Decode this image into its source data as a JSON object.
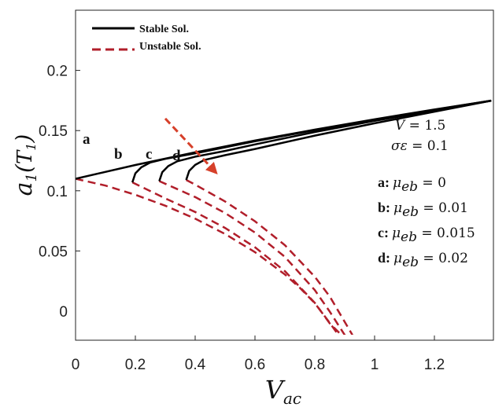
{
  "chart_data": {
    "type": "line",
    "xlabel_main": "V",
    "xlabel_sub": "ac",
    "ylabel_main": "a",
    "ylabel_sub": "1",
    "ylabel_arg": "T",
    "ylabel_arg_sub": "1",
    "xlim": [
      0,
      1.4
    ],
    "ylim": [
      -0.03,
      0.2
    ],
    "x_ticks": [
      {
        "value": 0,
        "label": "0"
      },
      {
        "value": 0.2,
        "label": "0.2"
      },
      {
        "value": 0.4,
        "label": "0.4"
      },
      {
        "value": 0.6,
        "label": "0.6"
      },
      {
        "value": 0.8,
        "label": "0.8"
      },
      {
        "value": 1.0,
        "label": "1"
      },
      {
        "value": 1.2,
        "label": "1.2"
      }
    ],
    "y_ticks": [
      {
        "value": 0.2,
        "label": "0.2"
      },
      {
        "value": 0.15,
        "label": "0.15"
      },
      {
        "value": 0.1,
        "label": "0.1"
      },
      {
        "value": 0.05,
        "label": "0.05"
      },
      {
        "value": 0.0,
        "label": "0"
      }
    ],
    "grid": false,
    "legend": {
      "placement": "top-left",
      "entries": [
        {
          "label": "Stable Sol.",
          "style": "solid",
          "color": "#000000"
        },
        {
          "label": "Unstable Sol.",
          "style": "dashed",
          "color": "#b11e2a"
        }
      ]
    },
    "colors": {
      "stable": "#000000",
      "unstable": "#b11e2a",
      "arrow": "#d6402a"
    },
    "series": [
      {
        "label": "a",
        "stable": {
          "x": [
            0,
            0.2,
            0.4,
            0.6,
            0.8,
            1.0,
            1.2,
            1.39
          ],
          "y": [
            0.11,
            0.1214,
            0.1319,
            0.1417,
            0.1508,
            0.1594,
            0.1675,
            0.1749
          ]
        },
        "unstable": {
          "x": [
            0,
            0.1,
            0.2,
            0.3,
            0.4,
            0.5,
            0.6,
            0.7,
            0.75,
            0.8,
            0.85,
            0.88,
            0.9,
            0.91
          ],
          "y": [
            0.11,
            0.1043,
            0.0967,
            0.0876,
            0.0768,
            0.0641,
            0.049,
            0.0305,
            0.0194,
            0.0066,
            -0.0097,
            -0.0201,
            -0.0263,
            -0.03
          ]
        }
      },
      {
        "label": "b",
        "stable": {
          "x": [
            0.19,
            0.2,
            0.22,
            0.25,
            0.3,
            0.4,
            0.6,
            0.8,
            1.0,
            1.2,
            1.39
          ],
          "y": [
            0.107,
            0.1145,
            0.1195,
            0.1235,
            0.1265,
            0.1311,
            0.1411,
            0.1504,
            0.1591,
            0.1673,
            0.1749
          ]
        },
        "unstable": {
          "x": [
            0.19,
            0.3,
            0.4,
            0.5,
            0.6,
            0.7,
            0.8,
            0.85,
            0.9,
            0.93
          ],
          "y": [
            0.107,
            0.0937,
            0.0824,
            0.0691,
            0.0531,
            0.0332,
            0.0069,
            -0.0102,
            -0.0225,
            -0.03
          ]
        }
      },
      {
        "label": "c",
        "stable": {
          "x": [
            0.28,
            0.29,
            0.31,
            0.34,
            0.4,
            0.5,
            0.6,
            0.8,
            1.0,
            1.2,
            1.39
          ],
          "y": [
            0.108,
            0.1155,
            0.1205,
            0.1245,
            0.1283,
            0.1331,
            0.1385,
            0.1488,
            0.1581,
            0.1667,
            0.1749
          ]
        },
        "unstable": {
          "x": [
            0.28,
            0.4,
            0.5,
            0.6,
            0.7,
            0.8,
            0.85,
            0.9,
            0.94
          ],
          "y": [
            0.108,
            0.0948,
            0.0815,
            0.0653,
            0.0451,
            0.0175,
            -0.0004,
            -0.0198,
            -0.03
          ]
        }
      },
      {
        "label": "d",
        "stable": {
          "x": [
            0.37,
            0.38,
            0.4,
            0.43,
            0.5,
            0.6,
            0.8,
            1.0,
            1.2,
            1.39
          ],
          "y": [
            0.109,
            0.1165,
            0.1215,
            0.1255,
            0.1296,
            0.1347,
            0.1458,
            0.1561,
            0.1657,
            0.1749
          ]
        },
        "unstable": {
          "x": [
            0.37,
            0.4,
            0.5,
            0.6,
            0.7,
            0.8,
            0.85,
            0.9,
            0.95
          ],
          "y": [
            0.109,
            0.1051,
            0.0911,
            0.0747,
            0.0548,
            0.0286,
            0.0122,
            -0.0089,
            -0.03
          ]
        }
      }
    ],
    "trivial_solution": {
      "stable": {
        "x": [
          0,
          0.91
        ],
        "y": [
          -0.03,
          -0.03
        ]
      },
      "unstable": {
        "x": [
          0.91,
          1.39
        ],
        "y": [
          -0.03,
          -0.03
        ]
      }
    },
    "arrow": {
      "from": [
        0.3,
        0.16
      ],
      "to": [
        0.47,
        0.115
      ]
    },
    "annotations": {
      "params": [
        {
          "sym": "V",
          "val": " = 1.5"
        },
        {
          "sym": "σε",
          "val": " = 0.1"
        }
      ],
      "mu_entries": [
        {
          "key": "a:",
          "val": " = 0"
        },
        {
          "key": "b:",
          "val": " = 0.01"
        },
        {
          "key": "c:",
          "val": " = 0.015"
        },
        {
          "key": "d:",
          "val": " = 0.02"
        }
      ],
      "mu_symbol": "μ",
      "mu_sub": "eb"
    }
  }
}
